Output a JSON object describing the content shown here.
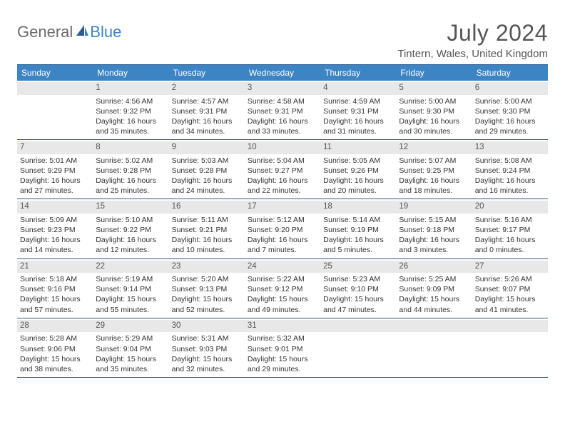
{
  "logo": {
    "text1": "General",
    "text2": "Blue"
  },
  "title": "July 2024",
  "location": "Tintern, Wales, United Kingdom",
  "colors": {
    "header_bg": "#3d84c4",
    "border": "#2a5a8f",
    "daynum_bg": "#e8e8e8",
    "text": "#333333"
  },
  "day_names": [
    "Sunday",
    "Monday",
    "Tuesday",
    "Wednesday",
    "Thursday",
    "Friday",
    "Saturday"
  ],
  "weeks": [
    [
      null,
      {
        "n": "1",
        "sr": "Sunrise: 4:56 AM",
        "ss": "Sunset: 9:32 PM",
        "dl": "Daylight: 16 hours and 35 minutes."
      },
      {
        "n": "2",
        "sr": "Sunrise: 4:57 AM",
        "ss": "Sunset: 9:31 PM",
        "dl": "Daylight: 16 hours and 34 minutes."
      },
      {
        "n": "3",
        "sr": "Sunrise: 4:58 AM",
        "ss": "Sunset: 9:31 PM",
        "dl": "Daylight: 16 hours and 33 minutes."
      },
      {
        "n": "4",
        "sr": "Sunrise: 4:59 AM",
        "ss": "Sunset: 9:31 PM",
        "dl": "Daylight: 16 hours and 31 minutes."
      },
      {
        "n": "5",
        "sr": "Sunrise: 5:00 AM",
        "ss": "Sunset: 9:30 PM",
        "dl": "Daylight: 16 hours and 30 minutes."
      },
      {
        "n": "6",
        "sr": "Sunrise: 5:00 AM",
        "ss": "Sunset: 9:30 PM",
        "dl": "Daylight: 16 hours and 29 minutes."
      }
    ],
    [
      {
        "n": "7",
        "sr": "Sunrise: 5:01 AM",
        "ss": "Sunset: 9:29 PM",
        "dl": "Daylight: 16 hours and 27 minutes."
      },
      {
        "n": "8",
        "sr": "Sunrise: 5:02 AM",
        "ss": "Sunset: 9:28 PM",
        "dl": "Daylight: 16 hours and 25 minutes."
      },
      {
        "n": "9",
        "sr": "Sunrise: 5:03 AM",
        "ss": "Sunset: 9:28 PM",
        "dl": "Daylight: 16 hours and 24 minutes."
      },
      {
        "n": "10",
        "sr": "Sunrise: 5:04 AM",
        "ss": "Sunset: 9:27 PM",
        "dl": "Daylight: 16 hours and 22 minutes."
      },
      {
        "n": "11",
        "sr": "Sunrise: 5:05 AM",
        "ss": "Sunset: 9:26 PM",
        "dl": "Daylight: 16 hours and 20 minutes."
      },
      {
        "n": "12",
        "sr": "Sunrise: 5:07 AM",
        "ss": "Sunset: 9:25 PM",
        "dl": "Daylight: 16 hours and 18 minutes."
      },
      {
        "n": "13",
        "sr": "Sunrise: 5:08 AM",
        "ss": "Sunset: 9:24 PM",
        "dl": "Daylight: 16 hours and 16 minutes."
      }
    ],
    [
      {
        "n": "14",
        "sr": "Sunrise: 5:09 AM",
        "ss": "Sunset: 9:23 PM",
        "dl": "Daylight: 16 hours and 14 minutes."
      },
      {
        "n": "15",
        "sr": "Sunrise: 5:10 AM",
        "ss": "Sunset: 9:22 PM",
        "dl": "Daylight: 16 hours and 12 minutes."
      },
      {
        "n": "16",
        "sr": "Sunrise: 5:11 AM",
        "ss": "Sunset: 9:21 PM",
        "dl": "Daylight: 16 hours and 10 minutes."
      },
      {
        "n": "17",
        "sr": "Sunrise: 5:12 AM",
        "ss": "Sunset: 9:20 PM",
        "dl": "Daylight: 16 hours and 7 minutes."
      },
      {
        "n": "18",
        "sr": "Sunrise: 5:14 AM",
        "ss": "Sunset: 9:19 PM",
        "dl": "Daylight: 16 hours and 5 minutes."
      },
      {
        "n": "19",
        "sr": "Sunrise: 5:15 AM",
        "ss": "Sunset: 9:18 PM",
        "dl": "Daylight: 16 hours and 3 minutes."
      },
      {
        "n": "20",
        "sr": "Sunrise: 5:16 AM",
        "ss": "Sunset: 9:17 PM",
        "dl": "Daylight: 16 hours and 0 minutes."
      }
    ],
    [
      {
        "n": "21",
        "sr": "Sunrise: 5:18 AM",
        "ss": "Sunset: 9:16 PM",
        "dl": "Daylight: 15 hours and 57 minutes."
      },
      {
        "n": "22",
        "sr": "Sunrise: 5:19 AM",
        "ss": "Sunset: 9:14 PM",
        "dl": "Daylight: 15 hours and 55 minutes."
      },
      {
        "n": "23",
        "sr": "Sunrise: 5:20 AM",
        "ss": "Sunset: 9:13 PM",
        "dl": "Daylight: 15 hours and 52 minutes."
      },
      {
        "n": "24",
        "sr": "Sunrise: 5:22 AM",
        "ss": "Sunset: 9:12 PM",
        "dl": "Daylight: 15 hours and 49 minutes."
      },
      {
        "n": "25",
        "sr": "Sunrise: 5:23 AM",
        "ss": "Sunset: 9:10 PM",
        "dl": "Daylight: 15 hours and 47 minutes."
      },
      {
        "n": "26",
        "sr": "Sunrise: 5:25 AM",
        "ss": "Sunset: 9:09 PM",
        "dl": "Daylight: 15 hours and 44 minutes."
      },
      {
        "n": "27",
        "sr": "Sunrise: 5:26 AM",
        "ss": "Sunset: 9:07 PM",
        "dl": "Daylight: 15 hours and 41 minutes."
      }
    ],
    [
      {
        "n": "28",
        "sr": "Sunrise: 5:28 AM",
        "ss": "Sunset: 9:06 PM",
        "dl": "Daylight: 15 hours and 38 minutes."
      },
      {
        "n": "29",
        "sr": "Sunrise: 5:29 AM",
        "ss": "Sunset: 9:04 PM",
        "dl": "Daylight: 15 hours and 35 minutes."
      },
      {
        "n": "30",
        "sr": "Sunrise: 5:31 AM",
        "ss": "Sunset: 9:03 PM",
        "dl": "Daylight: 15 hours and 32 minutes."
      },
      {
        "n": "31",
        "sr": "Sunrise: 5:32 AM",
        "ss": "Sunset: 9:01 PM",
        "dl": "Daylight: 15 hours and 29 minutes."
      },
      null,
      null,
      null
    ]
  ]
}
